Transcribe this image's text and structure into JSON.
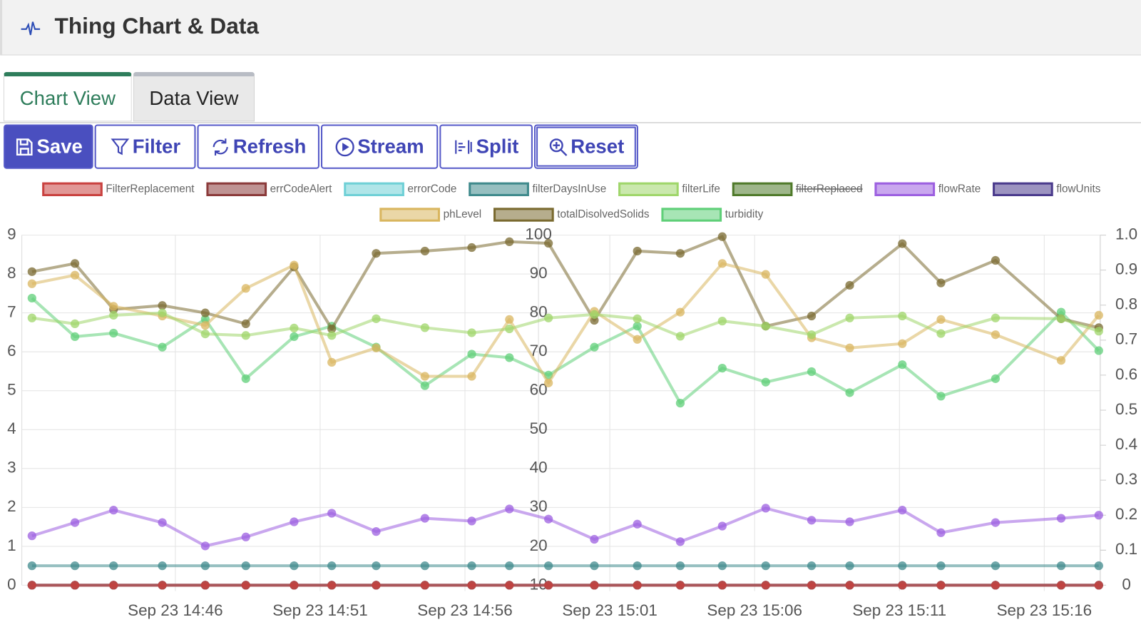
{
  "header": {
    "title": "Thing Chart & Data"
  },
  "tabs": [
    "Chart View",
    "Data View"
  ],
  "buttons": [
    "Save",
    "Filter",
    "Refresh",
    "Stream",
    "Split",
    "Reset"
  ],
  "chart_data": {
    "type": "line",
    "legend": "top",
    "grid": true,
    "x": [
      "Sep 23 14:41:03",
      "Sep 23 14:42:32",
      "Sep 23 14:43:52",
      "Sep 23 14:45:33",
      "Sep 23 14:47:02",
      "Sep 23 14:48:26",
      "Sep 23 14:50:06",
      "Sep 23 14:51:24",
      "Sep 23 14:52:56",
      "Sep 23 14:54:37",
      "Sep 23 14:56:14",
      "Sep 23 14:57:32",
      "Sep 23 14:58:53",
      "Sep 23 15:00:28",
      "Sep 23 15:01:57",
      "Sep 23 15:03:26",
      "Sep 23 15:04:53",
      "Sep 23 15:06:23",
      "Sep 23 15:07:58",
      "Sep 23 15:09:17",
      "Sep 23 15:11:06",
      "Sep 23 15:12:26",
      "Sep 23 15:14:19",
      "Sep 23 15:16:35",
      "Sep 23 15:17:53"
    ],
    "xlim": [
      "Sep 23 14:40:42",
      "Sep 23 15:17:56"
    ],
    "xticks": [
      "Sep 23 14:46",
      "Sep 23 14:51",
      "Sep 23 14:56",
      "Sep 23 15:01",
      "Sep 23 15:06",
      "Sep 23 15:11",
      "Sep 23 15:16"
    ],
    "ylim": [
      0,
      9
    ],
    "yticks": [
      0,
      1,
      2,
      3,
      4,
      5,
      6,
      7,
      8,
      9
    ],
    "y2lim": [
      10,
      100
    ],
    "y2ticks": [
      10,
      20,
      30,
      40,
      50,
      60,
      70,
      80,
      90,
      100
    ],
    "y3lim": [
      0,
      1
    ],
    "y3ticks": [
      0,
      0.1,
      0.2,
      0.3,
      0.4,
      0.5,
      0.6,
      0.7,
      0.8,
      0.9,
      {
        "value": 1,
        "label": "1.0"
      }
    ],
    "series": [
      {
        "name": "FilterReplacement",
        "color": "#c9413f",
        "axis": "y",
        "values": [
          0,
          0,
          0,
          0,
          0,
          0,
          0,
          0,
          0,
          0,
          0,
          0,
          0,
          0,
          0,
          0,
          0,
          0,
          0,
          0,
          0,
          0,
          0,
          0,
          0
        ]
      },
      {
        "name": "errCodeAlert",
        "color": "#8b3a3a",
        "axis": "y",
        "values": [
          0,
          0,
          0,
          0,
          0,
          0,
          0,
          0,
          0,
          0,
          0,
          0,
          0,
          0,
          0,
          0,
          0,
          0,
          0,
          0,
          0,
          0,
          0,
          0,
          0
        ]
      },
      {
        "name": "errorCode",
        "color": "#6fd0d6",
        "axis": "y",
        "values": [
          0,
          0,
          0,
          0,
          0,
          0,
          0,
          0,
          0,
          0,
          0,
          0,
          0,
          0,
          0,
          0,
          0,
          0,
          0,
          0,
          0,
          0,
          0,
          0,
          0
        ]
      },
      {
        "name": "filterDaysInUse",
        "color": "#3f8a8c",
        "axis": "y",
        "values": [
          0.5,
          0.5,
          0.5,
          0.5,
          0.5,
          0.5,
          0.5,
          0.5,
          0.5,
          0.5,
          0.5,
          0.5,
          0.5,
          0.5,
          0.5,
          0.5,
          0.5,
          0.5,
          0.5,
          0.5,
          0.5,
          0.5,
          0.5,
          0.5,
          0.5
        ]
      },
      {
        "name": "filterLife",
        "color": "#9fd66a",
        "axis": "y2",
        "values": [
          78.7,
          77.2,
          79.4,
          80.0,
          74.6,
          74.2,
          76.1,
          74.2,
          78.5,
          76.2,
          74.9,
          75.9,
          78.7,
          79.6,
          78.5,
          74.0,
          77.9,
          76.6,
          74.4,
          78.7,
          79.2,
          74.7,
          78.7,
          78.5,
          75.3
        ]
      },
      {
        "name": "filterReplaced",
        "color": "#4f7a2a",
        "axis": "y",
        "hidden": true
      },
      {
        "name": "flowRate",
        "color": "#9c5fe0",
        "axis": "y",
        "values": [
          1.27,
          1.61,
          1.93,
          1.61,
          1.01,
          1.24,
          1.63,
          1.85,
          1.38,
          1.72,
          1.65,
          1.96,
          1.7,
          1.18,
          1.57,
          1.12,
          1.52,
          1.98,
          1.67,
          1.63,
          1.93,
          1.35,
          1.61,
          1.72,
          1.8
        ]
      },
      {
        "name": "flowUnits",
        "color": "#4a3a8c",
        "axis": "y",
        "values": [
          0,
          0,
          0,
          0,
          0,
          0,
          0,
          0,
          0,
          0,
          0,
          0,
          0,
          0,
          0,
          0,
          0,
          0,
          0,
          0,
          0,
          0,
          0,
          0,
          0
        ]
      },
      {
        "name": "phLevel",
        "color": "#d9b65f",
        "axis": "y",
        "values": [
          7.75,
          7.97,
          7.17,
          6.92,
          6.68,
          7.63,
          8.23,
          5.73,
          6.1,
          5.37,
          5.37,
          6.83,
          5.2,
          7.04,
          6.32,
          7.02,
          8.27,
          7.99,
          6.36,
          6.1,
          6.21,
          6.83,
          6.44,
          5.78,
          6.94
        ]
      },
      {
        "name": "totalDisolvedSolids",
        "color": "#7a6a30",
        "axis": "y2",
        "values": [
          90.6,
          92.7,
          80.9,
          81.9,
          80.0,
          77.2,
          91.8,
          75.9,
          95.3,
          95.9,
          96.8,
          98.3,
          97.9,
          78.1,
          95.9,
          95.3,
          99.6,
          76.6,
          79.2,
          87.1,
          97.8,
          87.7,
          93.5,
          78.5,
          76.2
        ]
      },
      {
        "name": "turbidity",
        "color": "#5fcf78",
        "axis": "y3",
        "values": [
          0.82,
          0.71,
          0.72,
          0.68,
          0.76,
          0.59,
          0.71,
          0.74,
          0.68,
          0.57,
          0.66,
          0.65,
          0.6,
          0.68,
          0.74,
          0.52,
          0.62,
          0.58,
          0.61,
          0.55,
          0.63,
          0.54,
          0.59,
          0.78,
          0.67
        ]
      }
    ]
  }
}
